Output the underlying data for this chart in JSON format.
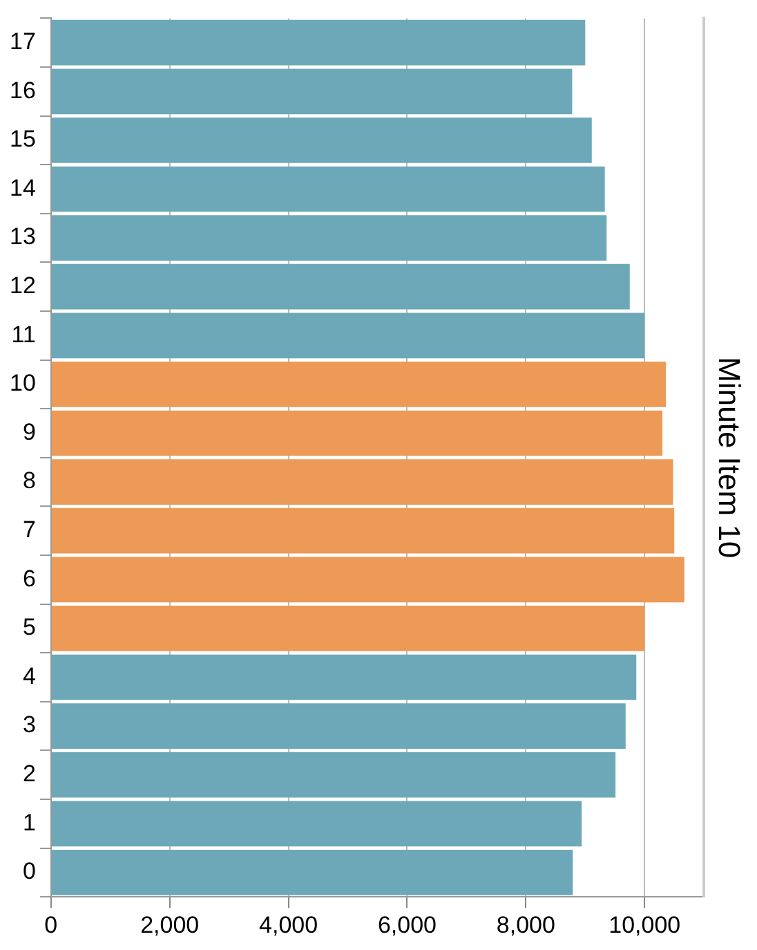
{
  "chart_data": {
    "type": "bar",
    "orientation": "horizontal",
    "y2label": "Minute Item 10",
    "categories": [
      "17",
      "16",
      "15",
      "14",
      "13",
      "12",
      "11",
      "10",
      "9",
      "8",
      "7",
      "6",
      "5",
      "4",
      "3",
      "2",
      "1",
      "0"
    ],
    "values": [
      9000,
      8780,
      9110,
      9330,
      9360,
      9750,
      10000,
      10360,
      10300,
      10480,
      10500,
      10670,
      10000,
      9860,
      9680,
      9510,
      8940,
      8790
    ],
    "colors": [
      "#6ca8b8",
      "#6ca8b8",
      "#6ca8b8",
      "#6ca8b8",
      "#6ca8b8",
      "#6ca8b8",
      "#6ca8b8",
      "#ec9a56",
      "#ec9a56",
      "#ec9a56",
      "#ec9a56",
      "#ec9a56",
      "#ec9a56",
      "#6ca8b8",
      "#6ca8b8",
      "#6ca8b8",
      "#6ca8b8",
      "#6ca8b8"
    ],
    "xlim": [
      0,
      11000
    ],
    "xticks": [
      0,
      {
        "value": 2000,
        "label": "2,000"
      },
      {
        "value": 4000,
        "label": "4,000"
      },
      {
        "value": 6000,
        "label": "6,000"
      },
      {
        "value": 8000,
        "label": "8,000"
      },
      {
        "value": 10000,
        "label": "10,000"
      }
    ],
    "grid": "x",
    "legend": false
  }
}
